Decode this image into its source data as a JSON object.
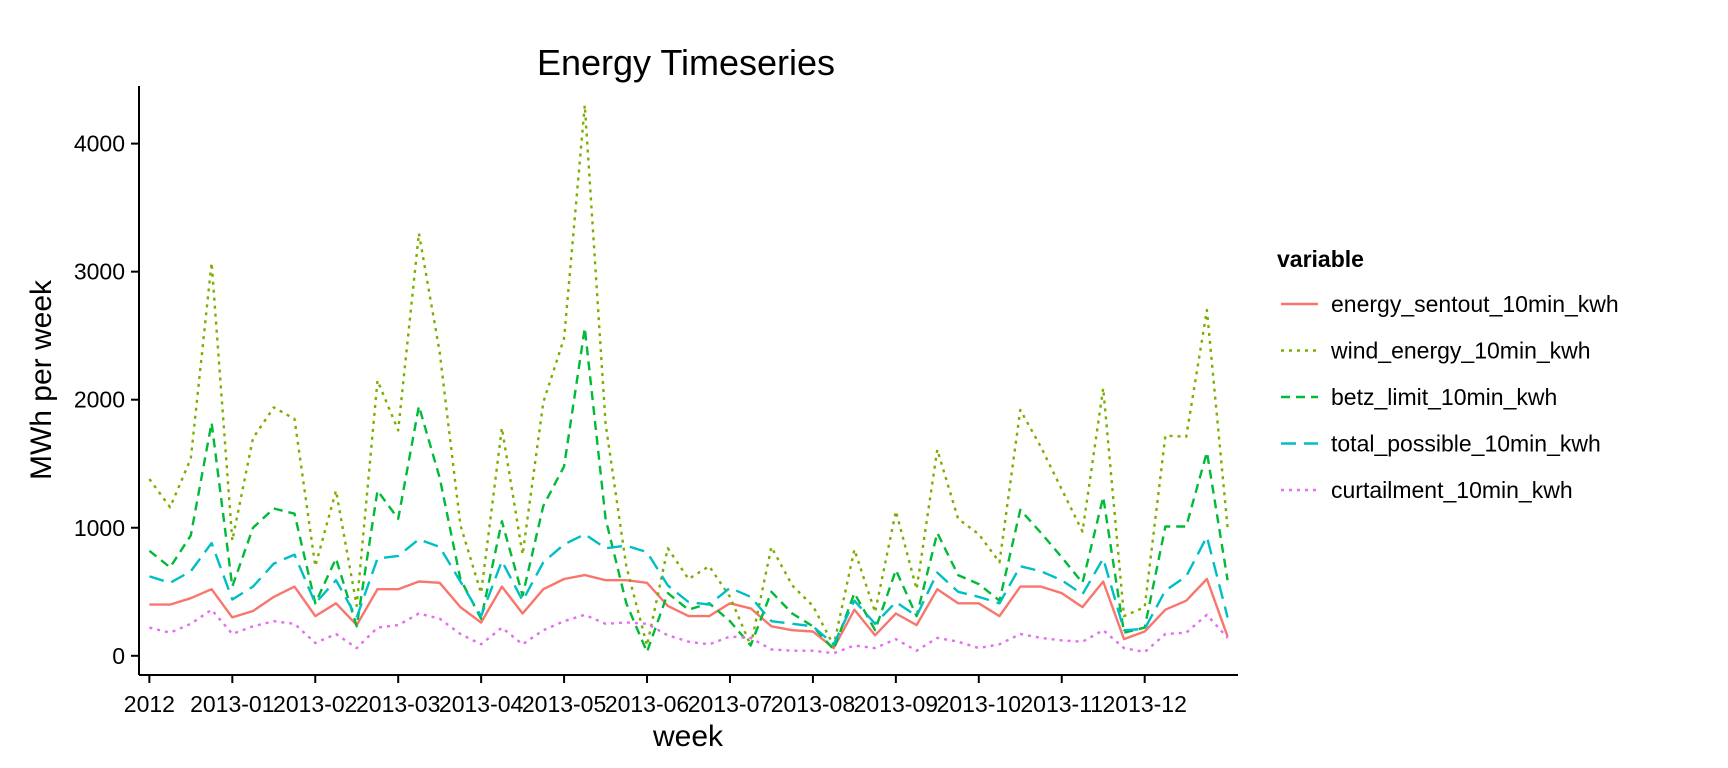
{
  "chart_data": {
    "type": "line",
    "title": "Energy Timeseries",
    "xlabel": "week",
    "ylabel": "MWh per week",
    "ylim": [
      -150,
      4450
    ],
    "yticks": [
      0,
      1000,
      2000,
      3000,
      4000
    ],
    "x_tick_labels": [
      "2012",
      "2013-01",
      "2013-02",
      "2013-03",
      "2013-04",
      "2013-05",
      "2013-06",
      "2013-07",
      "2013-08",
      "2013-09",
      "2013-10",
      "2013-11",
      "2013-12"
    ],
    "x_tick_weeks": [
      0,
      4,
      8,
      12,
      16,
      20,
      24,
      28,
      32,
      36,
      40,
      44,
      48
    ],
    "x_range_weeks": [
      -0.5,
      52.5
    ],
    "grid": false,
    "legend": {
      "title": "variable",
      "position": "right"
    },
    "x": [
      0,
      1,
      2,
      3,
      4,
      5,
      6,
      7,
      8,
      9,
      10,
      11,
      12,
      13,
      14,
      15,
      16,
      17,
      18,
      19,
      20,
      21,
      22,
      23,
      24,
      25,
      26,
      27,
      28,
      29,
      30,
      31,
      32,
      33,
      34,
      35,
      36,
      37,
      38,
      39,
      40,
      41,
      42,
      43,
      44,
      45,
      46,
      47,
      48,
      49,
      50,
      51,
      52
    ],
    "series": [
      {
        "name": "energy_sentout_10min_kwh",
        "color": "#F8766D",
        "dash": "solid",
        "values": [
          400,
          400,
          450,
          520,
          300,
          350,
          460,
          540,
          310,
          410,
          240,
          520,
          520,
          580,
          570,
          380,
          260,
          540,
          330,
          520,
          600,
          630,
          590,
          590,
          570,
          390,
          310,
          310,
          410,
          370,
          230,
          200,
          190,
          60,
          360,
          160,
          330,
          240,
          520,
          410,
          410,
          310,
          540,
          540,
          490,
          380,
          580,
          130,
          190,
          360,
          430,
          600,
          150
        ]
      },
      {
        "name": "wind_energy_10min_kwh",
        "color": "#7CAE00",
        "dash": "dotted",
        "values": [
          1380,
          1160,
          1540,
          3070,
          900,
          1700,
          1940,
          1850,
          700,
          1290,
          390,
          2150,
          1760,
          3300,
          2370,
          1020,
          490,
          1780,
          790,
          1980,
          2480,
          4300,
          1810,
          700,
          80,
          840,
          600,
          700,
          460,
          80,
          850,
          550,
          390,
          80,
          830,
          340,
          1130,
          520,
          1610,
          1070,
          950,
          730,
          1920,
          1630,
          1300,
          970,
          2090,
          310,
          380,
          1720,
          1710,
          2700,
          1000
        ]
      },
      {
        "name": "betz_limit_10min_kwh",
        "color": "#00BA38",
        "dash": "dashed",
        "values": [
          820,
          690,
          940,
          1820,
          540,
          1000,
          1150,
          1110,
          410,
          760,
          230,
          1290,
          1070,
          1950,
          1390,
          600,
          290,
          1050,
          470,
          1170,
          1480,
          2560,
          1070,
          410,
          30,
          490,
          360,
          410,
          270,
          80,
          500,
          330,
          230,
          50,
          490,
          200,
          670,
          310,
          960,
          630,
          560,
          430,
          1140,
          960,
          770,
          570,
          1240,
          180,
          220,
          1010,
          1010,
          1590,
          590
        ]
      },
      {
        "name": "total_possible_10min_kwh",
        "color": "#00BFC4",
        "dash": "longdash",
        "values": [
          620,
          570,
          660,
          880,
          440,
          540,
          720,
          790,
          410,
          590,
          300,
          760,
          780,
          910,
          850,
          580,
          310,
          740,
          430,
          730,
          870,
          950,
          840,
          860,
          810,
          550,
          420,
          400,
          530,
          460,
          270,
          250,
          230,
          90,
          430,
          250,
          420,
          310,
          650,
          500,
          460,
          410,
          700,
          660,
          590,
          480,
          760,
          200,
          210,
          510,
          620,
          930,
          300
        ]
      },
      {
        "name": "curtailment_10min_kwh",
        "color": "#E76BF3",
        "dash": "dotted",
        "values": [
          220,
          180,
          250,
          360,
          170,
          230,
          270,
          250,
          100,
          170,
          60,
          220,
          240,
          330,
          290,
          170,
          90,
          220,
          90,
          200,
          270,
          320,
          250,
          260,
          250,
          160,
          110,
          90,
          150,
          140,
          50,
          40,
          40,
          20,
          80,
          60,
          130,
          40,
          140,
          110,
          60,
          90,
          170,
          140,
          120,
          110,
          200,
          60,
          30,
          170,
          180,
          320,
          140
        ]
      }
    ]
  }
}
